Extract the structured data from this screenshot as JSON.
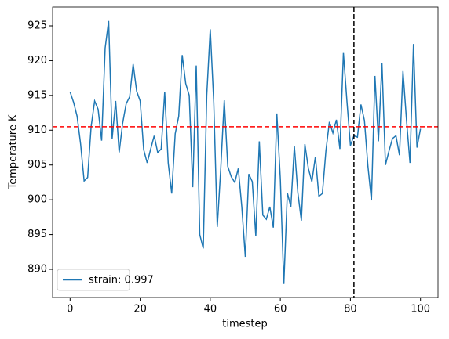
{
  "chart_data": {
    "type": "line",
    "xlabel": "timestep",
    "ylabel": "Temperature K",
    "x": [
      0,
      1,
      2,
      3,
      4,
      5,
      6,
      7,
      8,
      9,
      10,
      11,
      12,
      13,
      14,
      15,
      16,
      17,
      18,
      19,
      20,
      21,
      22,
      23,
      24,
      25,
      26,
      27,
      28,
      29,
      30,
      31,
      32,
      33,
      34,
      35,
      36,
      37,
      38,
      39,
      40,
      41,
      42,
      43,
      44,
      45,
      46,
      47,
      48,
      49,
      50,
      51,
      52,
      53,
      54,
      55,
      56,
      57,
      58,
      59,
      60,
      61,
      62,
      63,
      64,
      65,
      66,
      67,
      68,
      69,
      70,
      71,
      72,
      73,
      74,
      75,
      76,
      77,
      78,
      79,
      80,
      81,
      82,
      83,
      84,
      85,
      86,
      87,
      88,
      89,
      90,
      91,
      92,
      93,
      94,
      95,
      96,
      97,
      98,
      99,
      100
    ],
    "series": [
      {
        "name": "strain: 0.997",
        "color": "#1f77b4",
        "values": [
          915.5,
          914,
          912,
          908,
          902.7,
          903.2,
          910.5,
          914.2,
          913,
          908.5,
          921.8,
          925.7,
          908.8,
          914.2,
          906.8,
          911,
          913.8,
          914.8,
          919.5,
          915.6,
          914.2,
          907.2,
          905.3,
          907.3,
          909.2,
          906.8,
          907.3,
          915.5,
          905.3,
          900.9,
          909.5,
          912,
          920.8,
          916.7,
          915,
          901.8,
          919.3,
          895,
          893,
          915,
          924.5,
          914,
          896.1,
          904.5,
          914.3,
          904.8,
          903.3,
          902.5,
          904.5,
          899,
          891.8,
          903.7,
          902.6,
          894.8,
          908.4,
          897.8,
          897.2,
          899,
          896,
          912.4,
          903,
          887.9,
          901,
          899,
          907.7,
          901,
          897,
          908,
          904.5,
          902.6,
          906.2,
          900.5,
          900.9,
          907,
          911.2,
          909.6,
          911.5,
          907.3,
          921.1,
          914.2,
          907.8,
          909.2,
          909,
          913.7,
          911.4,
          904.8,
          899.9,
          917.8,
          908.4,
          919.7,
          905,
          907,
          908.8,
          909.2,
          906.4,
          918.5,
          911.5,
          905.3,
          922.4,
          907.5,
          910.2
        ]
      }
    ],
    "reference_lines": {
      "y": 910.5,
      "y_color": "#ff0000",
      "x": 81,
      "x_color": "#000000"
    },
    "xlim": [
      -5,
      105
    ],
    "xticks": [
      0,
      20,
      40,
      60,
      80,
      100
    ],
    "ylim": [
      885.95,
      927.7
    ],
    "yticks": [
      890,
      895,
      900,
      905,
      910,
      915,
      920,
      925
    ],
    "legend": "lower left"
  }
}
